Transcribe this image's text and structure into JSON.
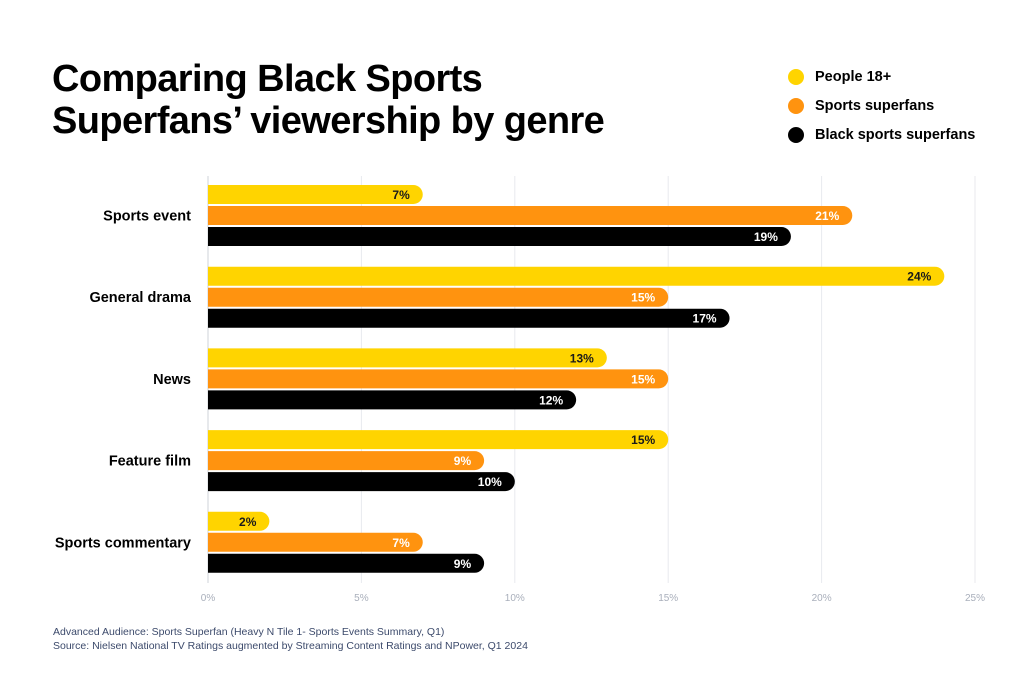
{
  "chart_data": {
    "type": "bar",
    "orientation": "horizontal",
    "title": "Comparing Black Sports Superfans’ viewership by genre",
    "title_lines": [
      "Comparing Black Sports",
      "Superfans’ viewership by genre"
    ],
    "categories": [
      "Sports event",
      "General drama",
      "News",
      "Feature film",
      "Sports commentary"
    ],
    "series": [
      {
        "name": "People 18+",
        "color": "#FFD400",
        "label_color": "#1a1a1a",
        "values": [
          7,
          24,
          13,
          15,
          2
        ]
      },
      {
        "name": "Sports superfans",
        "color": "#FF930F",
        "label_color": "#ffffff",
        "values": [
          21,
          15,
          15,
          9,
          7
        ]
      },
      {
        "name": "Black sports superfans",
        "color": "#000000",
        "label_color": "#ffffff",
        "values": [
          19,
          17,
          12,
          10,
          9
        ]
      }
    ],
    "value_suffix": "%",
    "xlabel": "",
    "ylabel": "",
    "xlim": [
      0,
      25
    ],
    "xticks": [
      0,
      5,
      10,
      15,
      20,
      25
    ],
    "xtick_labels": [
      "0%",
      "5%",
      "10%",
      "15%",
      "20%",
      "25%"
    ],
    "grid": true,
    "legend_position": "top-right"
  },
  "footnotes": [
    "Advanced Audience: Sports Superfan (Heavy N Tile 1- Sports Events Summary, Q1)",
    "Source: Nielsen National TV Ratings augmented by Streaming Content Ratings and NPower, Q1 2024"
  ]
}
